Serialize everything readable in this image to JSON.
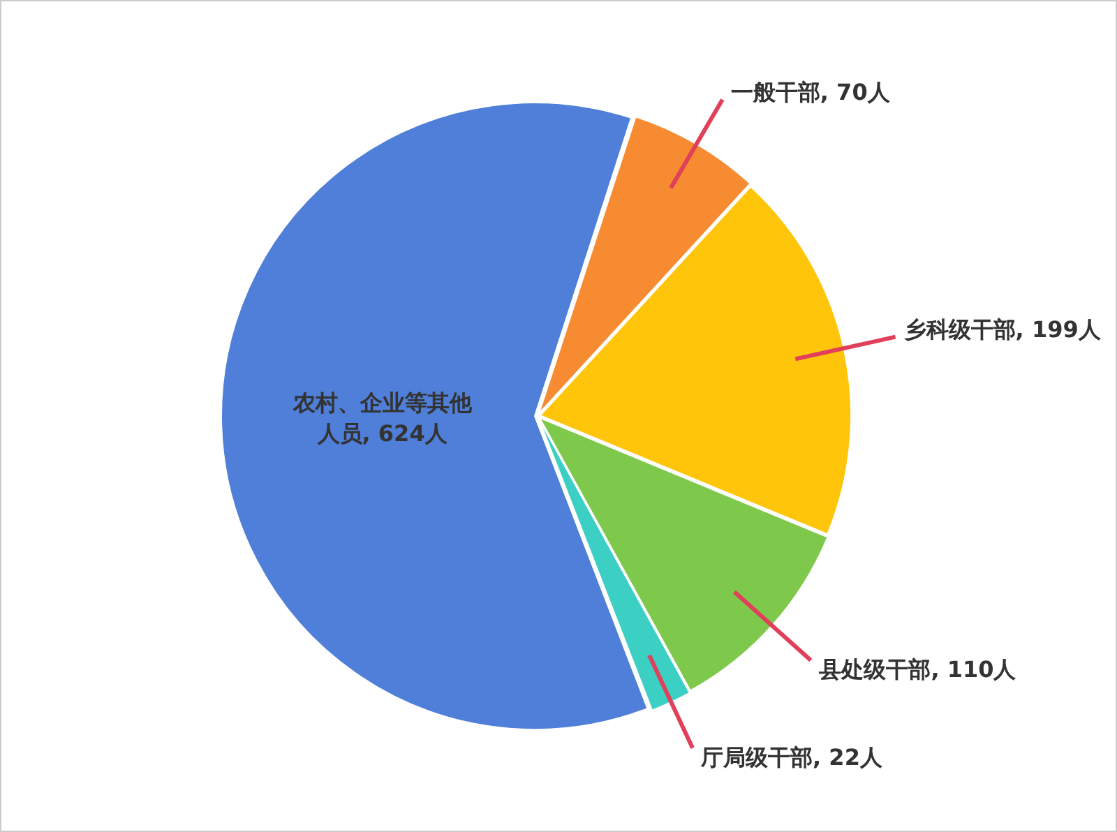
{
  "chart_data": {
    "type": "pie",
    "categories": [
      "一般干部",
      "乡科级干部",
      "县处级干部",
      "厅局级干部",
      "农村、企业等其他人员"
    ],
    "values": [
      70,
      199,
      110,
      22,
      624
    ],
    "colors": [
      "#f68b32",
      "#ffc50a",
      "#7ec94b",
      "#3ccfc4",
      "#4f7fd8"
    ],
    "value_labels": [
      "70人",
      "199人",
      "110人",
      "22人",
      "624人"
    ]
  }
}
